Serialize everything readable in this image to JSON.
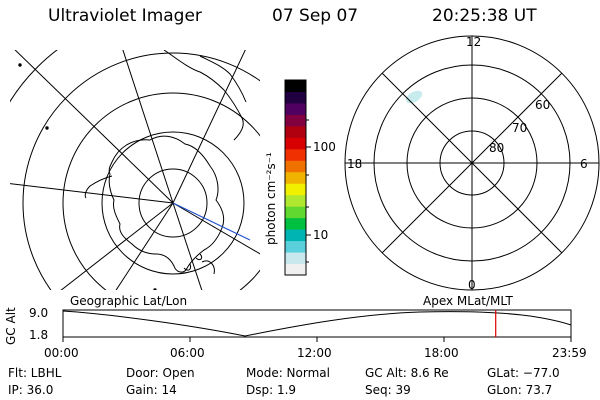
{
  "header": {
    "title": "Ultraviolet Imager",
    "date": "07 Sep 07",
    "time": "20:25:38 UT"
  },
  "colorbar": {
    "unit_label": "photon cm⁻²s⁻¹",
    "tick_100": "100",
    "tick_10": "10",
    "colors": [
      "#f0f0f0",
      "#c8e8ee",
      "#5ad0dc",
      "#00b4b4",
      "#00c040",
      "#60d830",
      "#b0e830",
      "#f0f000",
      "#f0b400",
      "#f07000",
      "#f03000",
      "#d80000",
      "#b00010",
      "#800040",
      "#500060",
      "#200040",
      "#000000"
    ]
  },
  "left_map": {
    "label": "Geographic Lat/Lon"
  },
  "right_map": {
    "label": "Apex MLat/MLT",
    "mlt_labels": {
      "top": "12",
      "bottom": "0",
      "left": "18",
      "right": "6"
    },
    "lat_labels": [
      "60",
      "70",
      "80"
    ]
  },
  "timeline": {
    "y_axis_label": "GC Alt",
    "y_max": "9.0",
    "y_min": "1.8",
    "x_ticks": [
      "00:00",
      "06:00",
      "12:00",
      "18:00",
      "23:59"
    ],
    "marker_time_hours": 20.43,
    "marker_color": "#e00000"
  },
  "info": {
    "filter": "Flt: LBHL",
    "ip": "IP: 36.0",
    "door": "Door: Open",
    "gain": "Gain: 14",
    "mode": "Mode: Normal",
    "dsp": "Dsp:    1.9",
    "gc_alt": "GC Alt: 8.6 Re",
    "seq": "Seq: 39",
    "glat": "GLat: −77.0",
    "glon": "GLon:  73.7"
  }
}
